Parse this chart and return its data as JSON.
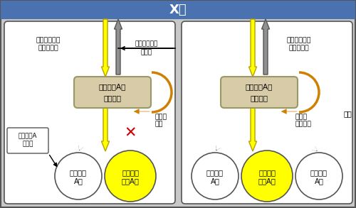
{
  "title": "X社",
  "title_bg": "#4a72b0",
  "title_fg": "white",
  "outer_bg": "#c8c8c8",
  "border_color": "#555555",
  "maker_box_fc": "#d8cba8",
  "maker_box_ec": "#999966",
  "yellow_fc": "#ffff00",
  "yellow_ec": "#b8a000",
  "gray_fc": "#909090",
  "gray_ec": "#555555",
  "orange_color": "#d08000",
  "circle_white_fc": "white",
  "circle_yellow_fc": "#ffff00",
  "circle_ec": "#555555",
  "red_x": "#cc0000",
  "black": "#000000",
  "white": "white",
  "left_license1": "製造特許等の",
  "left_license2": "ライセンス",
  "right_license1": "製造特許等の",
  "right_license2": "ライセンス",
  "license_pay1": "ライセンスの",
  "license_pay2": "支払い",
  "maker_line1": "電子部品Aの",
  "maker_line2": "メーカー",
  "ban_line1": "製造の",
  "ban_line2": "禁止",
  "free_line1": "製造の",
  "free_line2": "制限なし",
  "mfg_box1": "電子部品A",
  "mfg_box2": "の製造",
  "mfg_right": "製造",
  "lc1_l1": "電子部品",
  "lc1_l2": "A２",
  "lc2_l1": "競合電子",
  "lc2_l2": "部品A１",
  "rc1_l1": "電子部品",
  "rc1_l2": "A２",
  "rc2_l1": "競合電子",
  "rc2_l2": "部品A１",
  "rc3_l1": "電子部品",
  "rc3_l2": "A１"
}
